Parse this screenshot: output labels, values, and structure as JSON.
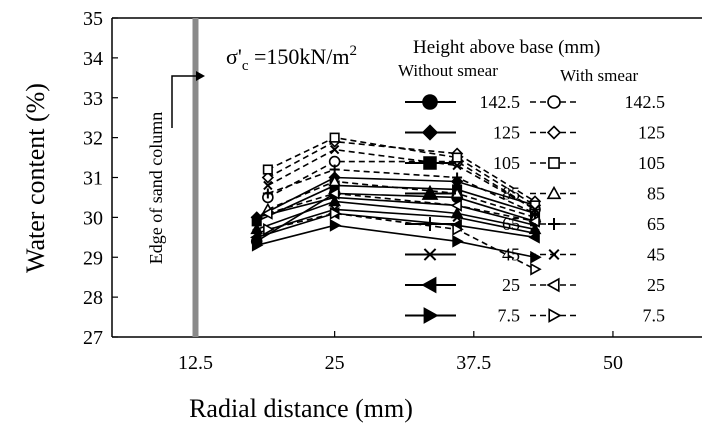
{
  "chart_data": {
    "type": "line",
    "xlabel": "Radial distance (mm)",
    "ylabel": "Water content (%)",
    "xlim": [
      5,
      58
    ],
    "ylim": [
      27,
      35
    ],
    "xticks": [
      "12.5",
      "25",
      "37.5",
      "50"
    ],
    "yticks": [
      "27",
      "28",
      "29",
      "30",
      "31",
      "32",
      "33",
      "34",
      "35"
    ],
    "annotation": "σ'c =150kN/m2",
    "edge_label": "Edge of sand column",
    "edge_x": 12.5,
    "legend_title": "Height above base (mm)",
    "legend_group_without": "Without smear",
    "legend_group_with": "With smear",
    "heights": [
      "142.5",
      "125",
      "105",
      "85",
      "65",
      "45",
      "25",
      "7.5"
    ],
    "series": [
      {
        "group": "without",
        "marker": "circle",
        "values": [
          [
            18,
            29.4
          ],
          [
            25,
            30.6
          ],
          [
            36,
            30.5
          ],
          [
            43,
            29.9
          ]
        ]
      },
      {
        "group": "without",
        "marker": "diamond",
        "values": [
          [
            18,
            30.0
          ],
          [
            25,
            31.0
          ],
          [
            36,
            30.9
          ],
          [
            43,
            30.3
          ]
        ]
      },
      {
        "group": "without",
        "marker": "square",
        "values": [
          [
            18,
            29.9
          ],
          [
            25,
            30.8
          ],
          [
            36,
            30.7
          ],
          [
            43,
            30.1
          ]
        ]
      },
      {
        "group": "without",
        "marker": "triangle",
        "values": [
          [
            18,
            29.7
          ],
          [
            25,
            30.4
          ],
          [
            36,
            30.1
          ],
          [
            43,
            29.7
          ]
        ]
      },
      {
        "group": "without",
        "marker": "plus",
        "values": [
          [
            18,
            30.0
          ],
          [
            25,
            30.5
          ],
          [
            36,
            30.3
          ],
          [
            43,
            29.8
          ]
        ]
      },
      {
        "group": "without",
        "marker": "x",
        "values": [
          [
            18,
            29.6
          ],
          [
            25,
            30.2
          ],
          [
            36,
            30.0
          ],
          [
            43,
            29.6
          ]
        ]
      },
      {
        "group": "without",
        "marker": "triangle-left",
        "values": [
          [
            18,
            29.5
          ],
          [
            25,
            30.1
          ],
          [
            36,
            29.8
          ],
          [
            43,
            29.5
          ]
        ]
      },
      {
        "group": "without",
        "marker": "triangle-right",
        "values": [
          [
            18,
            29.3
          ],
          [
            25,
            29.8
          ],
          [
            36,
            29.4
          ],
          [
            43,
            29.0
          ]
        ]
      },
      {
        "group": "with",
        "marker": "circle",
        "values": [
          [
            19,
            30.5
          ],
          [
            25,
            31.4
          ],
          [
            36,
            31.4
          ],
          [
            43,
            30.2
          ]
        ]
      },
      {
        "group": "with",
        "marker": "diamond",
        "values": [
          [
            19,
            31.0
          ],
          [
            25,
            31.9
          ],
          [
            36,
            31.6
          ],
          [
            43,
            30.4
          ]
        ]
      },
      {
        "group": "with",
        "marker": "square",
        "values": [
          [
            19,
            31.2
          ],
          [
            25,
            32.0
          ],
          [
            36,
            31.5
          ],
          [
            43,
            30.3
          ]
        ]
      },
      {
        "group": "with",
        "marker": "triangle",
        "values": [
          [
            19,
            30.2
          ],
          [
            25,
            30.9
          ],
          [
            36,
            30.6
          ],
          [
            43,
            30.0
          ]
        ]
      },
      {
        "group": "with",
        "marker": "plus",
        "values": [
          [
            19,
            30.6
          ],
          [
            25,
            31.2
          ],
          [
            36,
            31.0
          ],
          [
            43,
            30.1
          ]
        ]
      },
      {
        "group": "with",
        "marker": "x",
        "values": [
          [
            19,
            30.8
          ],
          [
            25,
            31.7
          ],
          [
            36,
            31.3
          ],
          [
            43,
            30.2
          ]
        ]
      },
      {
        "group": "with",
        "marker": "triangle-left",
        "values": [
          [
            19,
            30.1
          ],
          [
            25,
            30.6
          ],
          [
            36,
            30.3
          ],
          [
            43,
            29.9
          ]
        ]
      },
      {
        "group": "with",
        "marker": "triangle-right",
        "values": [
          [
            19,
            29.7
          ],
          [
            25,
            30.1
          ],
          [
            36,
            29.7
          ],
          [
            43,
            28.7
          ]
        ]
      }
    ]
  }
}
